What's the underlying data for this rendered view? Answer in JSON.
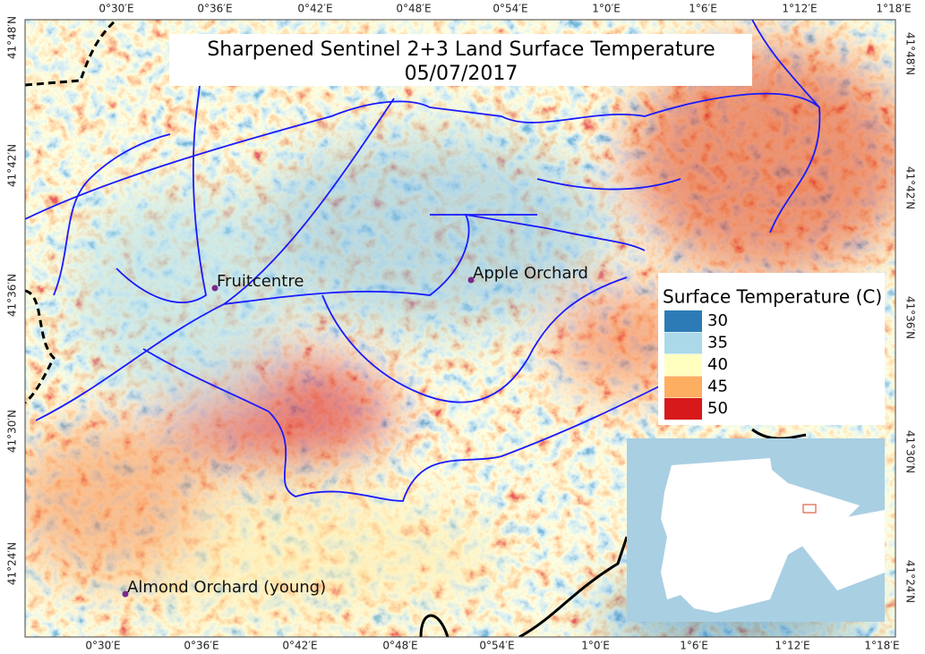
{
  "title": [
    "Sharpened Sentinel 2+3 Land Surface Temperature",
    "05/07/2017"
  ],
  "top_labels": [
    "0°30′E",
    "0°36′E",
    "0°42′E",
    "0°48′E",
    "0°54′E",
    "1°0′E",
    "1°6′E",
    "1°12′E",
    "1°18′E"
  ],
  "bottom_labels": [
    "0°30′E",
    "0°36′E",
    "0°42′E",
    "0°48′E",
    "0°54′E",
    "1°0′E",
    "1°6′E",
    "1°12′E",
    "1°18′E"
  ],
  "left_labels": [
    "41°48′N",
    "41°42′N",
    "41°36′N",
    "41°30′N",
    "41°24′N"
  ],
  "right_labels": [
    "41°48′N",
    "41°42′N",
    "41°36′N",
    "41°30′N",
    "41°24′N"
  ],
  "places": [
    "Fruitcentre",
    "Apple Orchard",
    "Almond Orchard (young)"
  ],
  "legend": {
    "title": "Surface Temperature (C)",
    "items": [
      {
        "value": 30,
        "color": "#2c7bb6"
      },
      {
        "value": 35,
        "color": "#abd9e9"
      },
      {
        "value": 40,
        "color": "#ffffbf"
      },
      {
        "value": 45,
        "color": "#fdae61"
      },
      {
        "value": 50,
        "color": "#d7191c"
      }
    ]
  }
}
